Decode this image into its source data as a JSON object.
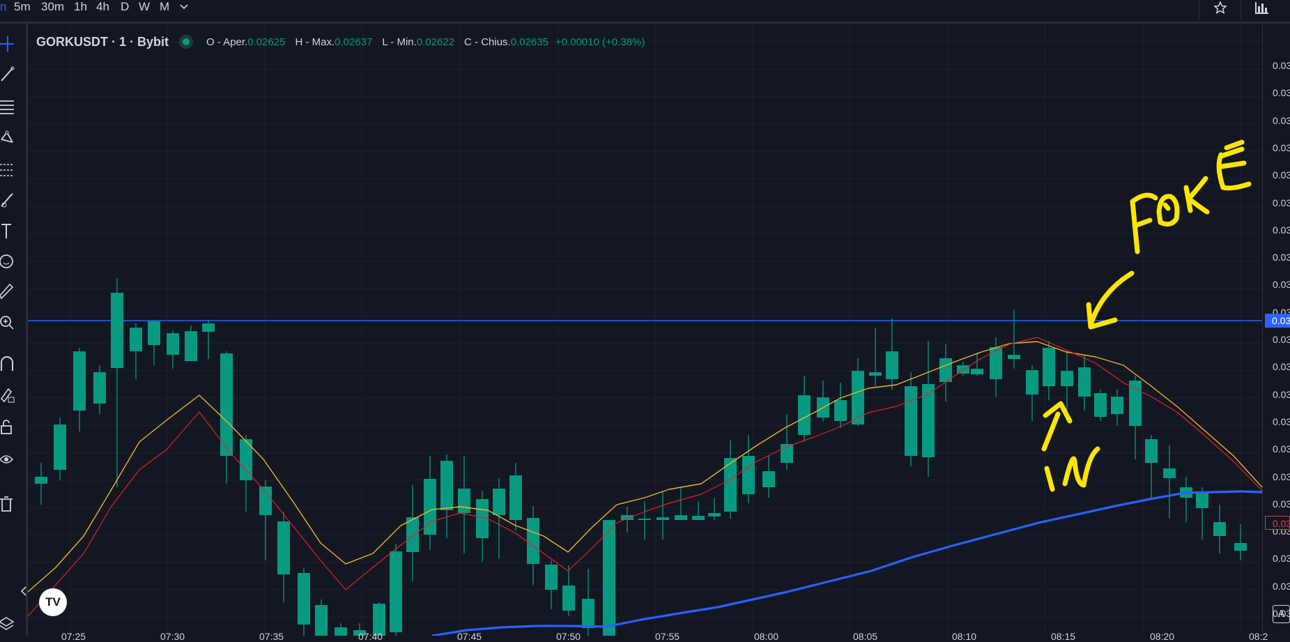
{
  "topbar": {
    "timeframes": [
      "5m",
      "30m",
      "1h",
      "4h",
      "D",
      "W",
      "M"
    ],
    "active_partial": "n",
    "dropdown_icon": "chevron-down-icon",
    "right_icons": [
      "star-icon",
      "bar-chart-icon"
    ]
  },
  "toolbar": {
    "icons": [
      "crosshair-icon",
      "trendline-icon",
      "fib-lines-icon",
      "pattern-icon",
      "forecast-icon",
      "brush-icon",
      "text-icon",
      "emoji-icon",
      "ruler-icon",
      "zoom-icon",
      "magnet-icon",
      "lock-draw-icon",
      "lock-icon",
      "eye-icon",
      "trash-icon",
      "layers-icon"
    ]
  },
  "legend": {
    "symbol": "GORKUSDT · 1 · Bybit",
    "o_label": "O - Aper.",
    "o_value": "0.02625",
    "h_label": "H - Max.",
    "h_value": "0.02637",
    "l_label": "L - Min.",
    "l_value": "0.02622",
    "c_label": "C - Chius.",
    "c_value": "0.02635",
    "change": "+0.00010 (+0.38%)"
  },
  "price_axis": {
    "labels": [
      "0.03",
      "0.03",
      "0.03",
      "0.03",
      "0.03",
      "0.03",
      "0.03",
      "0.03",
      "0.03",
      "0.03",
      "0.03",
      "0.03",
      "0.03",
      "0.03",
      "0.03",
      "0.03",
      "0.03",
      "0.03",
      "0.03",
      "0.03",
      "0.03",
      "0.03"
    ],
    "hline_tag": "0.03",
    "last_tag": "0.03",
    "auto_button": "A"
  },
  "time_axis": {
    "labels": [
      "07:25",
      "07:30",
      "07:35",
      "07:40",
      "07:45",
      "07:50",
      "07:55",
      "08:00",
      "08:05",
      "08:10",
      "08:15",
      "08:20",
      "08:2"
    ]
  },
  "annotations": {
    "fake": "FAKE",
    "in": "IN"
  },
  "colors": {
    "up": "#089981",
    "down": "#f23645",
    "ma_fast": "#e0222b",
    "ma_slow": "#f0b429",
    "ma_long": "#2962ff",
    "hline": "#2962ff",
    "annotation": "#ffe500"
  },
  "logo": "TV"
}
